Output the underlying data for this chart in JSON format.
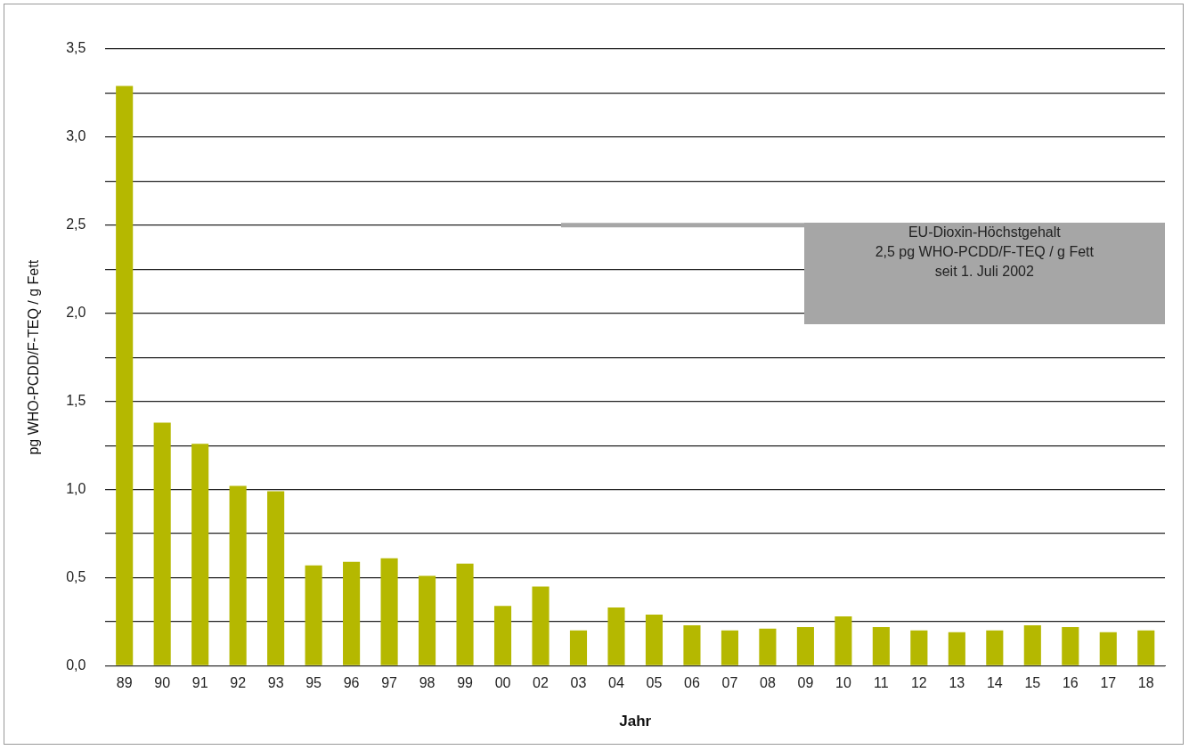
{
  "chart_data": {
    "type": "bar",
    "xlabel": "Jahr",
    "ylabel": "pg WHO-PCDD/F-TEQ / g Fett",
    "categories": [
      "89",
      "90",
      "91",
      "92",
      "93",
      "95",
      "96",
      "97",
      "98",
      "99",
      "00",
      "02",
      "03",
      "04",
      "05",
      "06",
      "07",
      "08",
      "09",
      "10",
      "11",
      "12",
      "13",
      "14",
      "15",
      "16",
      "17",
      "18"
    ],
    "values": [
      3.29,
      1.38,
      1.26,
      1.02,
      0.99,
      0.57,
      0.59,
      0.61,
      0.51,
      0.58,
      0.34,
      0.45,
      0.2,
      0.33,
      0.29,
      0.23,
      0.2,
      0.21,
      0.22,
      0.28,
      0.22,
      0.2,
      0.19,
      0.2,
      0.23,
      0.22,
      0.19,
      0.2
    ],
    "color": "#b5b800",
    "ylim": [
      0,
      3.5
    ],
    "yticks": [
      {
        "value": 0,
        "label": "0,0"
      },
      {
        "value": 0.25,
        "label": null
      },
      {
        "value": 0.5,
        "label": "0,5"
      },
      {
        "value": 0.75,
        "label": null
      },
      {
        "value": 1,
        "label": "1,0"
      },
      {
        "value": 1.25,
        "label": null
      },
      {
        "value": 1.5,
        "label": "1,5"
      },
      {
        "value": 1.75,
        "label": null
      },
      {
        "value": 2,
        "label": "2,0"
      },
      {
        "value": 2.25,
        "label": null
      },
      {
        "value": 2.5,
        "label": "2,5"
      },
      {
        "value": 2.75,
        "label": null
      },
      {
        "value": 3,
        "label": "3,0"
      },
      {
        "value": 3.25,
        "label": null
      },
      {
        "value": 3.5,
        "label": "3,5"
      }
    ],
    "grid": "y",
    "legend": false,
    "ref_lines": [
      {
        "axis": "y",
        "value": 2.5,
        "label": "EU-Dioxin-Höchstgehalt\n2,5 pg WHO-PCDD/F-TEQ / g Fett\nseit 1. Juli 2002",
        "color": "#a6a6a6"
      }
    ]
  }
}
